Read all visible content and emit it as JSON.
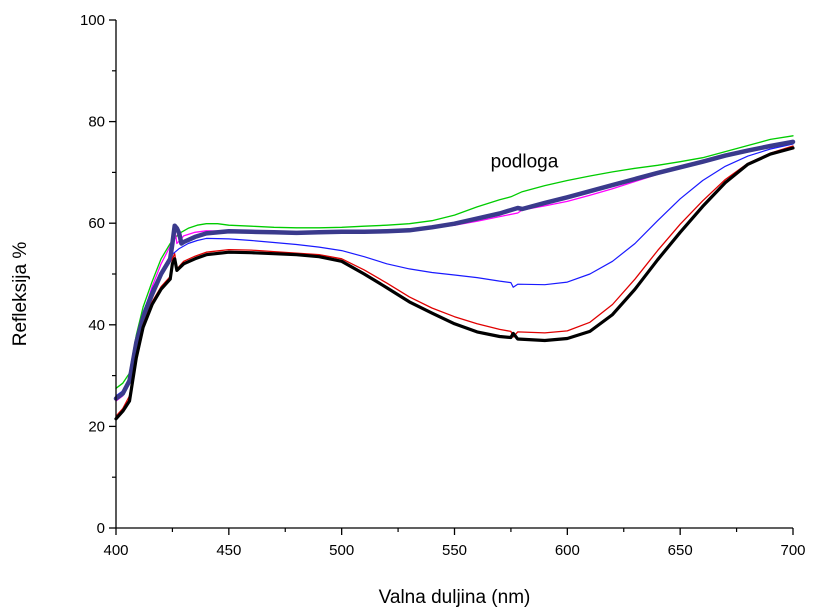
{
  "chart_data": {
    "type": "line",
    "xlabel": "Valna duljina (nm)",
    "ylabel": "Refleksija %",
    "xlim": [
      400,
      700
    ],
    "ylim": [
      0,
      100
    ],
    "x_ticks": [
      400,
      450,
      500,
      550,
      600,
      650,
      700
    ],
    "y_ticks": [
      0,
      20,
      40,
      60,
      80,
      100
    ],
    "grid": false,
    "legend": "none",
    "annotations": [
      {
        "text": "podloga",
        "x": 581,
        "y": 71
      }
    ],
    "series": [
      {
        "color": "#00cc00",
        "width": 1.3,
        "points": [
          [
            400,
            27.5
          ],
          [
            403,
            28.5
          ],
          [
            406,
            30.5
          ],
          [
            409,
            38
          ],
          [
            412,
            43.5
          ],
          [
            416,
            48.5
          ],
          [
            420,
            53
          ],
          [
            424,
            56
          ],
          [
            428,
            58
          ],
          [
            432,
            59
          ],
          [
            436,
            59.6
          ],
          [
            440,
            59.9
          ],
          [
            445,
            59.9
          ],
          [
            450,
            59.6
          ],
          [
            460,
            59.4
          ],
          [
            470,
            59.2
          ],
          [
            480,
            59.1
          ],
          [
            490,
            59.1
          ],
          [
            500,
            59.2
          ],
          [
            510,
            59.4
          ],
          [
            520,
            59.6
          ],
          [
            530,
            59.9
          ],
          [
            540,
            60.5
          ],
          [
            550,
            61.6
          ],
          [
            560,
            63.2
          ],
          [
            570,
            64.6
          ],
          [
            575,
            65.2
          ],
          [
            580,
            66.2
          ],
          [
            590,
            67.4
          ],
          [
            600,
            68.4
          ],
          [
            610,
            69.3
          ],
          [
            620,
            70.1
          ],
          [
            630,
            70.8
          ],
          [
            640,
            71.4
          ],
          [
            650,
            72.1
          ],
          [
            660,
            72.9
          ],
          [
            670,
            74.1
          ],
          [
            680,
            75.3
          ],
          [
            690,
            76.5
          ],
          [
            700,
            77.2
          ]
        ]
      },
      {
        "color": "#ff00ff",
        "width": 1.3,
        "points": [
          [
            400,
            25
          ],
          [
            403,
            26
          ],
          [
            406,
            29
          ],
          [
            409,
            36.5
          ],
          [
            412,
            42
          ],
          [
            416,
            47.5
          ],
          [
            420,
            52
          ],
          [
            424,
            55.5
          ],
          [
            426,
            59
          ],
          [
            427,
            56
          ],
          [
            430,
            57.5
          ],
          [
            435,
            58.2
          ],
          [
            440,
            58.5
          ],
          [
            450,
            58.4
          ],
          [
            460,
            58.3
          ],
          [
            470,
            58.3
          ],
          [
            480,
            58.2
          ],
          [
            490,
            58.2
          ],
          [
            500,
            58.3
          ],
          [
            510,
            58.3
          ],
          [
            520,
            58.5
          ],
          [
            530,
            58.7
          ],
          [
            540,
            59.1
          ],
          [
            550,
            59.6
          ],
          [
            560,
            60.4
          ],
          [
            570,
            61.3
          ],
          [
            578,
            62
          ],
          [
            580,
            62.6
          ],
          [
            590,
            63.4
          ],
          [
            600,
            64.3
          ],
          [
            610,
            65.5
          ],
          [
            620,
            66.8
          ],
          [
            630,
            68.2
          ],
          [
            640,
            69.6
          ],
          [
            650,
            70.8
          ],
          [
            660,
            72
          ],
          [
            670,
            73.2
          ],
          [
            680,
            74.3
          ],
          [
            690,
            75.3
          ],
          [
            700,
            75.9
          ]
        ]
      },
      {
        "color": "#1a1aff",
        "width": 1.2,
        "points": [
          [
            400,
            26
          ],
          [
            403,
            27
          ],
          [
            406,
            29.5
          ],
          [
            409,
            37
          ],
          [
            412,
            42.5
          ],
          [
            416,
            47
          ],
          [
            420,
            50.5
          ],
          [
            424,
            53.5
          ],
          [
            428,
            55
          ],
          [
            432,
            56
          ],
          [
            436,
            56.6
          ],
          [
            440,
            57
          ],
          [
            450,
            56.9
          ],
          [
            460,
            56.6
          ],
          [
            470,
            56.2
          ],
          [
            480,
            55.8
          ],
          [
            490,
            55.3
          ],
          [
            500,
            54.6
          ],
          [
            510,
            53.4
          ],
          [
            520,
            52
          ],
          [
            530,
            51
          ],
          [
            540,
            50.3
          ],
          [
            550,
            49.8
          ],
          [
            560,
            49.3
          ],
          [
            570,
            48.6
          ],
          [
            575,
            48.3
          ],
          [
            576,
            47.4
          ],
          [
            578,
            48
          ],
          [
            590,
            47.9
          ],
          [
            600,
            48.4
          ],
          [
            610,
            50
          ],
          [
            620,
            52.5
          ],
          [
            630,
            56
          ],
          [
            640,
            60.5
          ],
          [
            650,
            64.8
          ],
          [
            660,
            68.4
          ],
          [
            670,
            71.2
          ],
          [
            680,
            73.2
          ],
          [
            690,
            74.6
          ],
          [
            700,
            75.6
          ]
        ]
      },
      {
        "color": "#3a3a8c",
        "width": 4.5,
        "points": [
          [
            400,
            25.5
          ],
          [
            403,
            26.5
          ],
          [
            406,
            29
          ],
          [
            409,
            36.5
          ],
          [
            412,
            41.5
          ],
          [
            416,
            46
          ],
          [
            420,
            50
          ],
          [
            424,
            53
          ],
          [
            425,
            56
          ],
          [
            426,
            59.5
          ],
          [
            427,
            59
          ],
          [
            428,
            58
          ],
          [
            429,
            56
          ],
          [
            430,
            56.3
          ],
          [
            435,
            57.3
          ],
          [
            440,
            58
          ],
          [
            450,
            58.4
          ],
          [
            460,
            58.3
          ],
          [
            470,
            58.2
          ],
          [
            480,
            58.1
          ],
          [
            490,
            58.2
          ],
          [
            500,
            58.3
          ],
          [
            510,
            58.3
          ],
          [
            520,
            58.4
          ],
          [
            530,
            58.6
          ],
          [
            540,
            59.2
          ],
          [
            550,
            59.9
          ],
          [
            560,
            60.9
          ],
          [
            570,
            61.9
          ],
          [
            578,
            63
          ],
          [
            580,
            62.8
          ],
          [
            590,
            64
          ],
          [
            600,
            65.1
          ],
          [
            610,
            66.3
          ],
          [
            620,
            67.5
          ],
          [
            630,
            68.7
          ],
          [
            640,
            69.9
          ],
          [
            650,
            71
          ],
          [
            660,
            72.1
          ],
          [
            670,
            73.3
          ],
          [
            680,
            74.3
          ],
          [
            690,
            75.2
          ],
          [
            700,
            76
          ]
        ]
      },
      {
        "color": "#e00000",
        "width": 1.3,
        "points": [
          [
            400,
            22
          ],
          [
            403,
            23.5
          ],
          [
            406,
            26
          ],
          [
            409,
            34
          ],
          [
            412,
            40
          ],
          [
            416,
            44.5
          ],
          [
            420,
            47.5
          ],
          [
            424,
            49.5
          ],
          [
            425,
            53
          ],
          [
            426,
            54
          ],
          [
            427,
            51
          ],
          [
            430,
            52.5
          ],
          [
            435,
            53.5
          ],
          [
            440,
            54.3
          ],
          [
            450,
            54.8
          ],
          [
            460,
            54.7
          ],
          [
            470,
            54.4
          ],
          [
            480,
            54.1
          ],
          [
            490,
            53.8
          ],
          [
            500,
            53
          ],
          [
            510,
            50.8
          ],
          [
            520,
            48.2
          ],
          [
            530,
            45.5
          ],
          [
            540,
            43.3
          ],
          [
            550,
            41.6
          ],
          [
            560,
            40.2
          ],
          [
            570,
            39.1
          ],
          [
            575,
            38.7
          ],
          [
            576,
            37.6
          ],
          [
            578,
            38.6
          ],
          [
            590,
            38.4
          ],
          [
            600,
            38.8
          ],
          [
            610,
            40.5
          ],
          [
            620,
            44
          ],
          [
            630,
            49
          ],
          [
            640,
            54.6
          ],
          [
            650,
            59.8
          ],
          [
            660,
            64.4
          ],
          [
            670,
            68.6
          ],
          [
            680,
            71.8
          ],
          [
            690,
            73.8
          ],
          [
            700,
            75.2
          ]
        ]
      },
      {
        "color": "#000000",
        "width": 3.2,
        "points": [
          [
            400,
            21.5
          ],
          [
            403,
            23
          ],
          [
            406,
            25
          ],
          [
            409,
            33.5
          ],
          [
            412,
            39.5
          ],
          [
            416,
            44
          ],
          [
            420,
            47
          ],
          [
            424,
            49
          ],
          [
            425,
            52
          ],
          [
            426,
            53
          ],
          [
            427,
            50.7
          ],
          [
            430,
            52
          ],
          [
            435,
            53
          ],
          [
            440,
            53.8
          ],
          [
            450,
            54.3
          ],
          [
            460,
            54.2
          ],
          [
            470,
            54
          ],
          [
            480,
            53.8
          ],
          [
            490,
            53.4
          ],
          [
            500,
            52.5
          ],
          [
            510,
            50
          ],
          [
            520,
            47.3
          ],
          [
            530,
            44.5
          ],
          [
            540,
            42.3
          ],
          [
            550,
            40.2
          ],
          [
            560,
            38.6
          ],
          [
            570,
            37.7
          ],
          [
            575,
            37.5
          ],
          [
            576,
            38.3
          ],
          [
            578,
            37.2
          ],
          [
            590,
            36.9
          ],
          [
            600,
            37.3
          ],
          [
            610,
            38.7
          ],
          [
            620,
            42
          ],
          [
            630,
            47
          ],
          [
            640,
            52.8
          ],
          [
            650,
            58.2
          ],
          [
            660,
            63.3
          ],
          [
            670,
            68
          ],
          [
            680,
            71.6
          ],
          [
            690,
            73.6
          ],
          [
            700,
            74.8
          ]
        ]
      }
    ]
  }
}
